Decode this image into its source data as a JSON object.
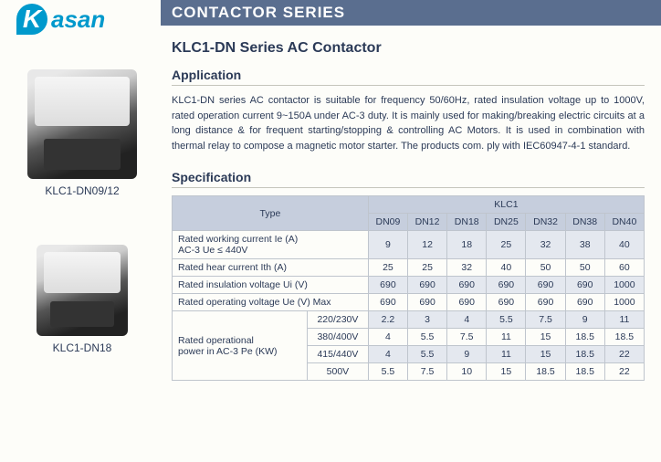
{
  "brand": {
    "letter": "K",
    "name": "asan"
  },
  "header": {
    "title": "CONTACTOR  SERIES"
  },
  "series_title": "KLC1-DN Series AC Contactor",
  "products": [
    {
      "caption": "KLC1-DN09/12"
    },
    {
      "caption": "KLC1-DN18"
    }
  ],
  "application": {
    "heading": "Application",
    "text": "KLC1-DN series AC contactor is suitable for frequency 50/60Hz, rated insulation voltage up to 1000V, rated operation current 9~150A under AC-3 duty. It is mainly used for making/breaking electric circuits at a long distance & for frequent starting/stopping & controlling AC Motors. It is used in combination with thermal relay to compose a magnetic motor starter. The products com. ply with IEC60947-4-1 standard."
  },
  "specification": {
    "heading": "Specification",
    "type_label": "Type",
    "group_header": "KLC1",
    "models": [
      "DN09",
      "DN12",
      "DN18",
      "DN25",
      "DN32",
      "DN38",
      "DN40"
    ],
    "rows": [
      {
        "label": "Rated working current Ie (A)\nAC-3 Ue ≤ 440V",
        "values": [
          "9",
          "12",
          "18",
          "25",
          "32",
          "38",
          "40"
        ]
      },
      {
        "label": "Rated hear current Ith (A)",
        "values": [
          "25",
          "25",
          "32",
          "40",
          "50",
          "50",
          "60"
        ]
      },
      {
        "label": "Rated insulation voltage Ui (V)",
        "values": [
          "690",
          "690",
          "690",
          "690",
          "690",
          "690",
          "1000"
        ]
      },
      {
        "label": "Rated operating voltage Ue (V) Max",
        "values": [
          "690",
          "690",
          "690",
          "690",
          "690",
          "690",
          "1000"
        ]
      }
    ],
    "power_group": {
      "label": "Rated operational\npower in AC-3 Pe (KW)",
      "subrows": [
        {
          "sub": "220/230V",
          "values": [
            "2.2",
            "3",
            "4",
            "5.5",
            "7.5",
            "9",
            "11"
          ]
        },
        {
          "sub": "380/400V",
          "values": [
            "4",
            "5.5",
            "7.5",
            "11",
            "15",
            "18.5",
            "18.5"
          ]
        },
        {
          "sub": "415/440V",
          "values": [
            "4",
            "5.5",
            "9",
            "11",
            "15",
            "18.5",
            "22"
          ]
        },
        {
          "sub": "500V",
          "values": [
            "5.5",
            "7.5",
            "10",
            "15",
            "18.5",
            "18.5",
            "22"
          ]
        }
      ]
    }
  }
}
